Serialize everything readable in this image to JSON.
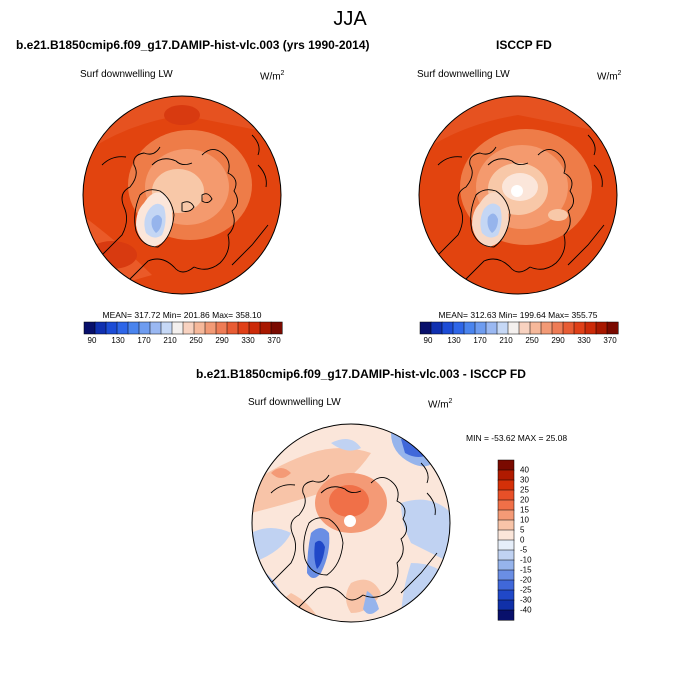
{
  "figure": {
    "title": "JJA"
  },
  "panels": [
    {
      "title": "b.e21.B1850cmip6.f09_g17.DAMIP-hist-vlc.003 (yrs 1990-2014)",
      "variable": "Surf downwelling LW",
      "units": "W/m",
      "units_sup": "2",
      "stats": "MEAN= 317.72  Min= 201.86  Max= 358.10"
    },
    {
      "title": "ISCCP FD",
      "variable": "Surf downwelling LW",
      "units": "W/m",
      "units_sup": "2",
      "stats": "MEAN= 312.63  Min= 199.64  Max= 355.75"
    },
    {
      "title": "b.e21.B1850cmip6.f09_g17.DAMIP-hist-vlc.003 - ISCCP FD",
      "variable": "Surf downwelling LW",
      "units": "W/m",
      "units_sup": "2",
      "stats": "MIN = -53.62 MAX =  25.08"
    }
  ],
  "colorbar_abs": {
    "labels": [
      "90",
      "130",
      "170",
      "210",
      "250",
      "290",
      "330",
      "370"
    ],
    "colors": [
      "#08106b",
      "#1030b0",
      "#1c4cd6",
      "#2e66e8",
      "#4a84ee",
      "#6e9cf0",
      "#9ab8f2",
      "#c6d8f6",
      "#f4f0ee",
      "#f8d2c0",
      "#f6b89a",
      "#f29a76",
      "#ee7c56",
      "#e85c34",
      "#e04018",
      "#cc2a08",
      "#a81800",
      "#7a0a00"
    ]
  },
  "colorbar_diff": {
    "labels": [
      "40",
      "30",
      "25",
      "20",
      "15",
      "10",
      "5",
      "0",
      "-5",
      "-10",
      "-15",
      "-20",
      "-25",
      "-30",
      "-40"
    ],
    "colors": [
      "#7a0a00",
      "#b01a00",
      "#d43008",
      "#e85028",
      "#f07048",
      "#f49a76",
      "#f8c4a8",
      "#fbe6da",
      "#e6eef9",
      "#c0d2f2",
      "#96b4ec",
      "#6a8ee4",
      "#4068da",
      "#2048c8",
      "#1030a8",
      "#08106b"
    ]
  }
}
